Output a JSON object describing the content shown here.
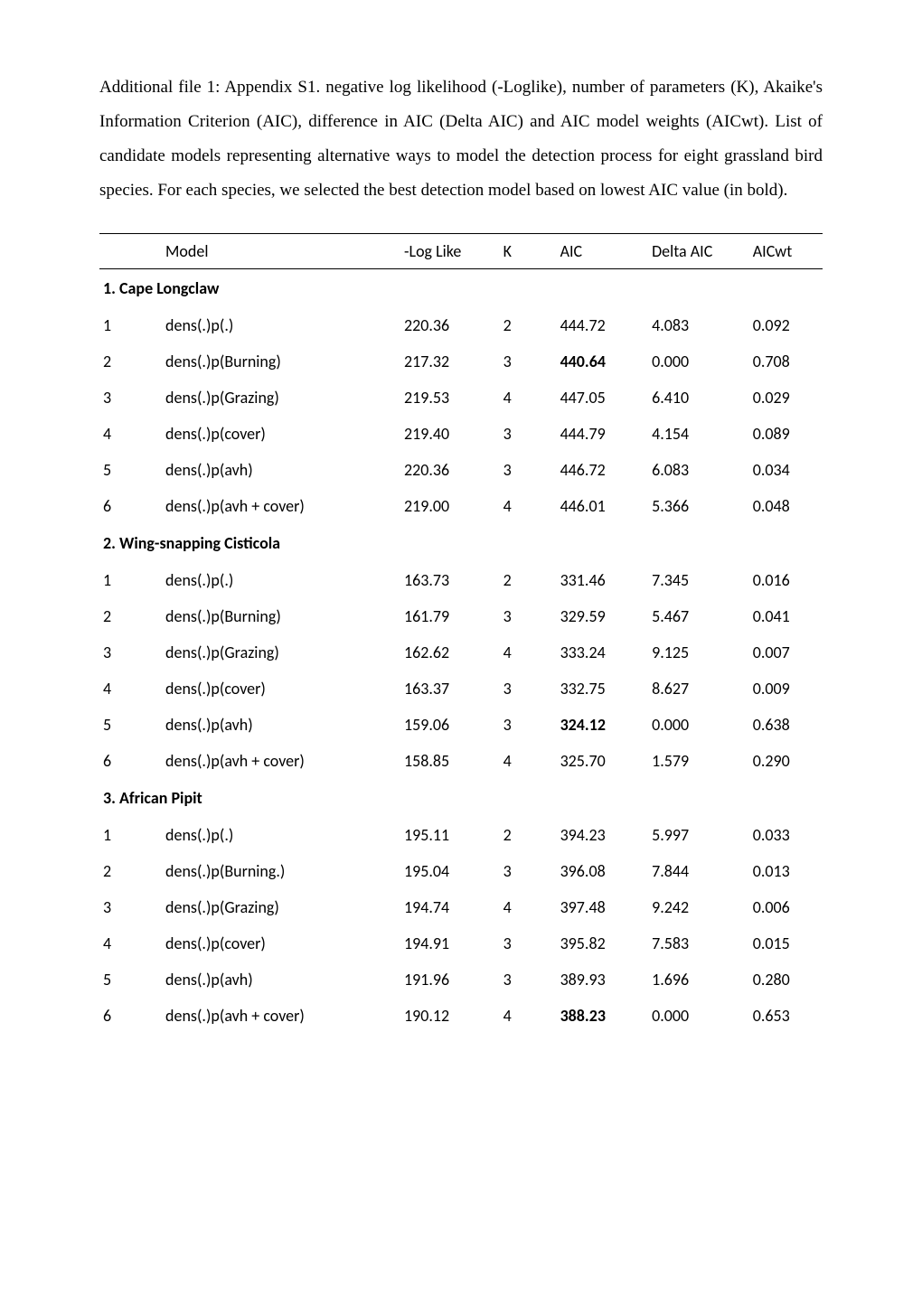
{
  "description": "Additional file 1: Appendix S1. negative log likelihood (-Loglike), number of parameters (K), Akaike's Information Criterion (AIC), difference in AIC (Delta AIC) and AIC model weights (AICwt). List of candidate models representing alternative ways to model the detection process for eight grassland bird species. For each species, we selected the best detection model based on lowest AIC value (in bold).",
  "columns": {
    "idx": "",
    "model": "Model",
    "loglike": "-Log Like",
    "k": "K",
    "aic": "AIC",
    "delta": "Delta AIC",
    "wt": "AICwt"
  },
  "sections": [
    {
      "title": "1. Cape Longclaw",
      "rows": [
        {
          "idx": "1",
          "model": "dens(.)p(.)",
          "loglike": "220.36",
          "k": "2",
          "aic": "444.72",
          "delta": "4.083",
          "wt": "0.092",
          "aic_bold": false
        },
        {
          "idx": "2",
          "model": "dens(.)p(Burning)",
          "loglike": "217.32",
          "k": "3",
          "aic": "440.64",
          "delta": "0.000",
          "wt": "0.708",
          "aic_bold": true
        },
        {
          "idx": "3",
          "model": "dens(.)p(Grazing)",
          "loglike": "219.53",
          "k": "4",
          "aic": "447.05",
          "delta": "6.410",
          "wt": "0.029",
          "aic_bold": false
        },
        {
          "idx": "4",
          "model": "dens(.)p(cover)",
          "loglike": "219.40",
          "k": "3",
          "aic": "444.79",
          "delta": "4.154",
          "wt": "0.089",
          "aic_bold": false
        },
        {
          "idx": "5",
          "model": "dens(.)p(avh)",
          "loglike": "220.36",
          "k": "3",
          "aic": "446.72",
          "delta": "6.083",
          "wt": "0.034",
          "aic_bold": false
        },
        {
          "idx": "6",
          "model": "dens(.)p(avh + cover)",
          "loglike": "219.00",
          "k": "4",
          "aic": "446.01",
          "delta": "5.366",
          "wt": "0.048",
          "aic_bold": false
        }
      ]
    },
    {
      "title": "2. Wing-snapping Cisticola",
      "rows": [
        {
          "idx": "1",
          "model": "dens(.)p(.)",
          "loglike": "163.73",
          "k": "2",
          "aic": "331.46",
          "delta": "7.345",
          "wt": "0.016",
          "aic_bold": false
        },
        {
          "idx": "2",
          "model": "dens(.)p(Burning)",
          "loglike": "161.79",
          "k": "3",
          "aic": "329.59",
          "delta": "5.467",
          "wt": "0.041",
          "aic_bold": false
        },
        {
          "idx": "3",
          "model": "dens(.)p(Grazing)",
          "loglike": "162.62",
          "k": "4",
          "aic": "333.24",
          "delta": "9.125",
          "wt": "0.007",
          "aic_bold": false
        },
        {
          "idx": "4",
          "model": "dens(.)p(cover)",
          "loglike": "163.37",
          "k": "3",
          "aic": "332.75",
          "delta": "8.627",
          "wt": "0.009",
          "aic_bold": false
        },
        {
          "idx": "5",
          "model": "dens(.)p(avh)",
          "loglike": "159.06",
          "k": "3",
          "aic": "324.12",
          "delta": "0.000",
          "wt": "0.638",
          "aic_bold": true
        },
        {
          "idx": "6",
          "model": "dens(.)p(avh + cover)",
          "loglike": "158.85",
          "k": "4",
          "aic": "325.70",
          "delta": "1.579",
          "wt": "0.290",
          "aic_bold": false
        }
      ]
    },
    {
      "title": "3. African Pipit",
      "rows": [
        {
          "idx": "1",
          "model": "dens(.)p(.)",
          "loglike": "195.11",
          "k": "2",
          "aic": "394.23",
          "delta": "5.997",
          "wt": "0.033",
          "aic_bold": false
        },
        {
          "idx": "2",
          "model": "dens(.)p(Burning.)",
          "loglike": "195.04",
          "k": "3",
          "aic": "396.08",
          "delta": "7.844",
          "wt": "0.013",
          "aic_bold": false
        },
        {
          "idx": "3",
          "model": "dens(.)p(Grazing)",
          "loglike": "194.74",
          "k": "4",
          "aic": "397.48",
          "delta": "9.242",
          "wt": "0.006",
          "aic_bold": false
        },
        {
          "idx": "4",
          "model": "dens(.)p(cover)",
          "loglike": "194.91",
          "k": "3",
          "aic": "395.82",
          "delta": "7.583",
          "wt": "0.015",
          "aic_bold": false
        },
        {
          "idx": "5",
          "model": "dens(.)p(avh)",
          "loglike": "191.96",
          "k": "3",
          "aic": "389.93",
          "delta": "1.696",
          "wt": "0.280",
          "aic_bold": false
        },
        {
          "idx": "6",
          "model": "dens(.)p(avh + cover)",
          "loglike": "190.12",
          "k": "4",
          "aic": "388.23",
          "delta": "0.000",
          "wt": "0.653",
          "aic_bold": true
        }
      ]
    }
  ]
}
